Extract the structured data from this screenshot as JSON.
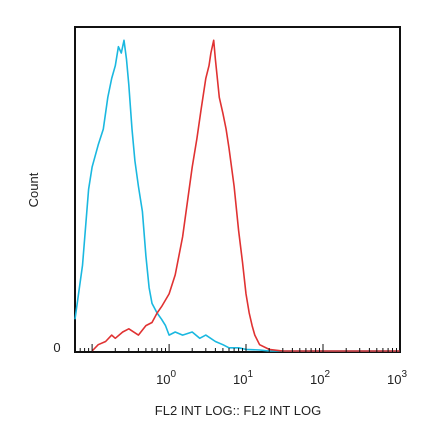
{
  "chart_data": {
    "type": "line",
    "title": "",
    "xlabel": "FL2 INT LOG:: FL2 INT LOG",
    "ylabel": "Count",
    "x_scale": "log",
    "xlim": [
      0.06,
      1000
    ],
    "ylim": [
      0,
      100
    ],
    "x_ticks": [
      {
        "label": "10",
        "exponent": "0",
        "value": 1
      },
      {
        "label": "10",
        "exponent": "1",
        "value": 10
      },
      {
        "label": "10",
        "exponent": "2",
        "value": 100
      },
      {
        "label": "10",
        "exponent": "3",
        "value": 1000
      }
    ],
    "y_ticks": [
      {
        "label": "0",
        "value": 0
      }
    ],
    "grid": false,
    "legend": "none",
    "series": [
      {
        "color": "#1ab8e0",
        "x": [
          0.06,
          0.075,
          0.09,
          0.1,
          0.12,
          0.14,
          0.16,
          0.18,
          0.2,
          0.22,
          0.24,
          0.26,
          0.28,
          0.3,
          0.33,
          0.36,
          0.4,
          0.45,
          0.5,
          0.55,
          0.6,
          0.7,
          0.8,
          0.9,
          1.0,
          1.2,
          1.5,
          2.0,
          2.5,
          3.0,
          4.0,
          5.0,
          6.0,
          8.0,
          10,
          15,
          20,
          50,
          100,
          1000
        ],
        "y": [
          10,
          27,
          51,
          58,
          65,
          70,
          80,
          86,
          90,
          96,
          94,
          98,
          92,
          84,
          70,
          60,
          52,
          44,
          30,
          20,
          15,
          12,
          10,
          8,
          5,
          6,
          5,
          6,
          4,
          5,
          3,
          2,
          1,
          1,
          0.5,
          0.3,
          0,
          0,
          0,
          0
        ]
      },
      {
        "color": "#e03232",
        "x": [
          0.1,
          0.12,
          0.15,
          0.18,
          0.2,
          0.25,
          0.3,
          0.4,
          0.5,
          0.6,
          0.7,
          0.8,
          1.0,
          1.2,
          1.5,
          1.8,
          2.0,
          2.3,
          2.6,
          3.0,
          3.3,
          3.5,
          3.8,
          4.0,
          4.5,
          5.0,
          5.5,
          6.0,
          7.0,
          8.0,
          9.0,
          10,
          11,
          12,
          13,
          15,
          20,
          30,
          100,
          1000
        ],
        "y": [
          0,
          2,
          3,
          5,
          4,
          6,
          7,
          5,
          8,
          9,
          12,
          14,
          18,
          24,
          36,
          50,
          58,
          67,
          76,
          86,
          90,
          94,
          98,
          92,
          80,
          75,
          70,
          64,
          52,
          38,
          28,
          18,
          12,
          8,
          5,
          2,
          0.5,
          0,
          0,
          0
        ]
      }
    ]
  }
}
